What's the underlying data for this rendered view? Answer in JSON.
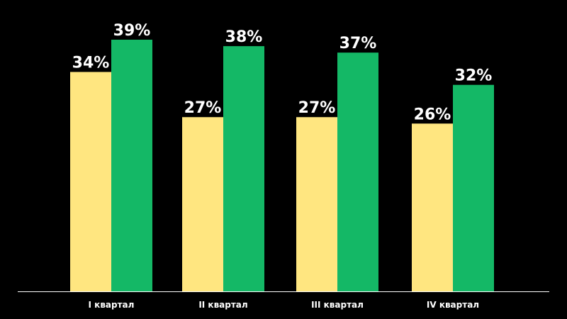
{
  "colors": {
    "background": "#000000",
    "series_1": "#FFE680",
    "series_2": "#14B866",
    "axis": "#FFFFFF",
    "text": "#FFFFFF"
  },
  "chart_data": {
    "type": "bar",
    "categories": [
      "I квартал",
      "II квартал",
      "III квартал",
      "IV квартал"
    ],
    "series": [
      {
        "values": [
          34,
          27,
          27,
          26
        ],
        "labels": [
          "34%",
          "27%",
          "27%",
          "26%"
        ]
      },
      {
        "values": [
          39,
          38,
          37,
          32
        ],
        "labels": [
          "39%",
          "38%",
          "37%",
          "32%"
        ]
      }
    ],
    "ylim": [
      0,
      40
    ],
    "grid": false,
    "legend": "none"
  }
}
